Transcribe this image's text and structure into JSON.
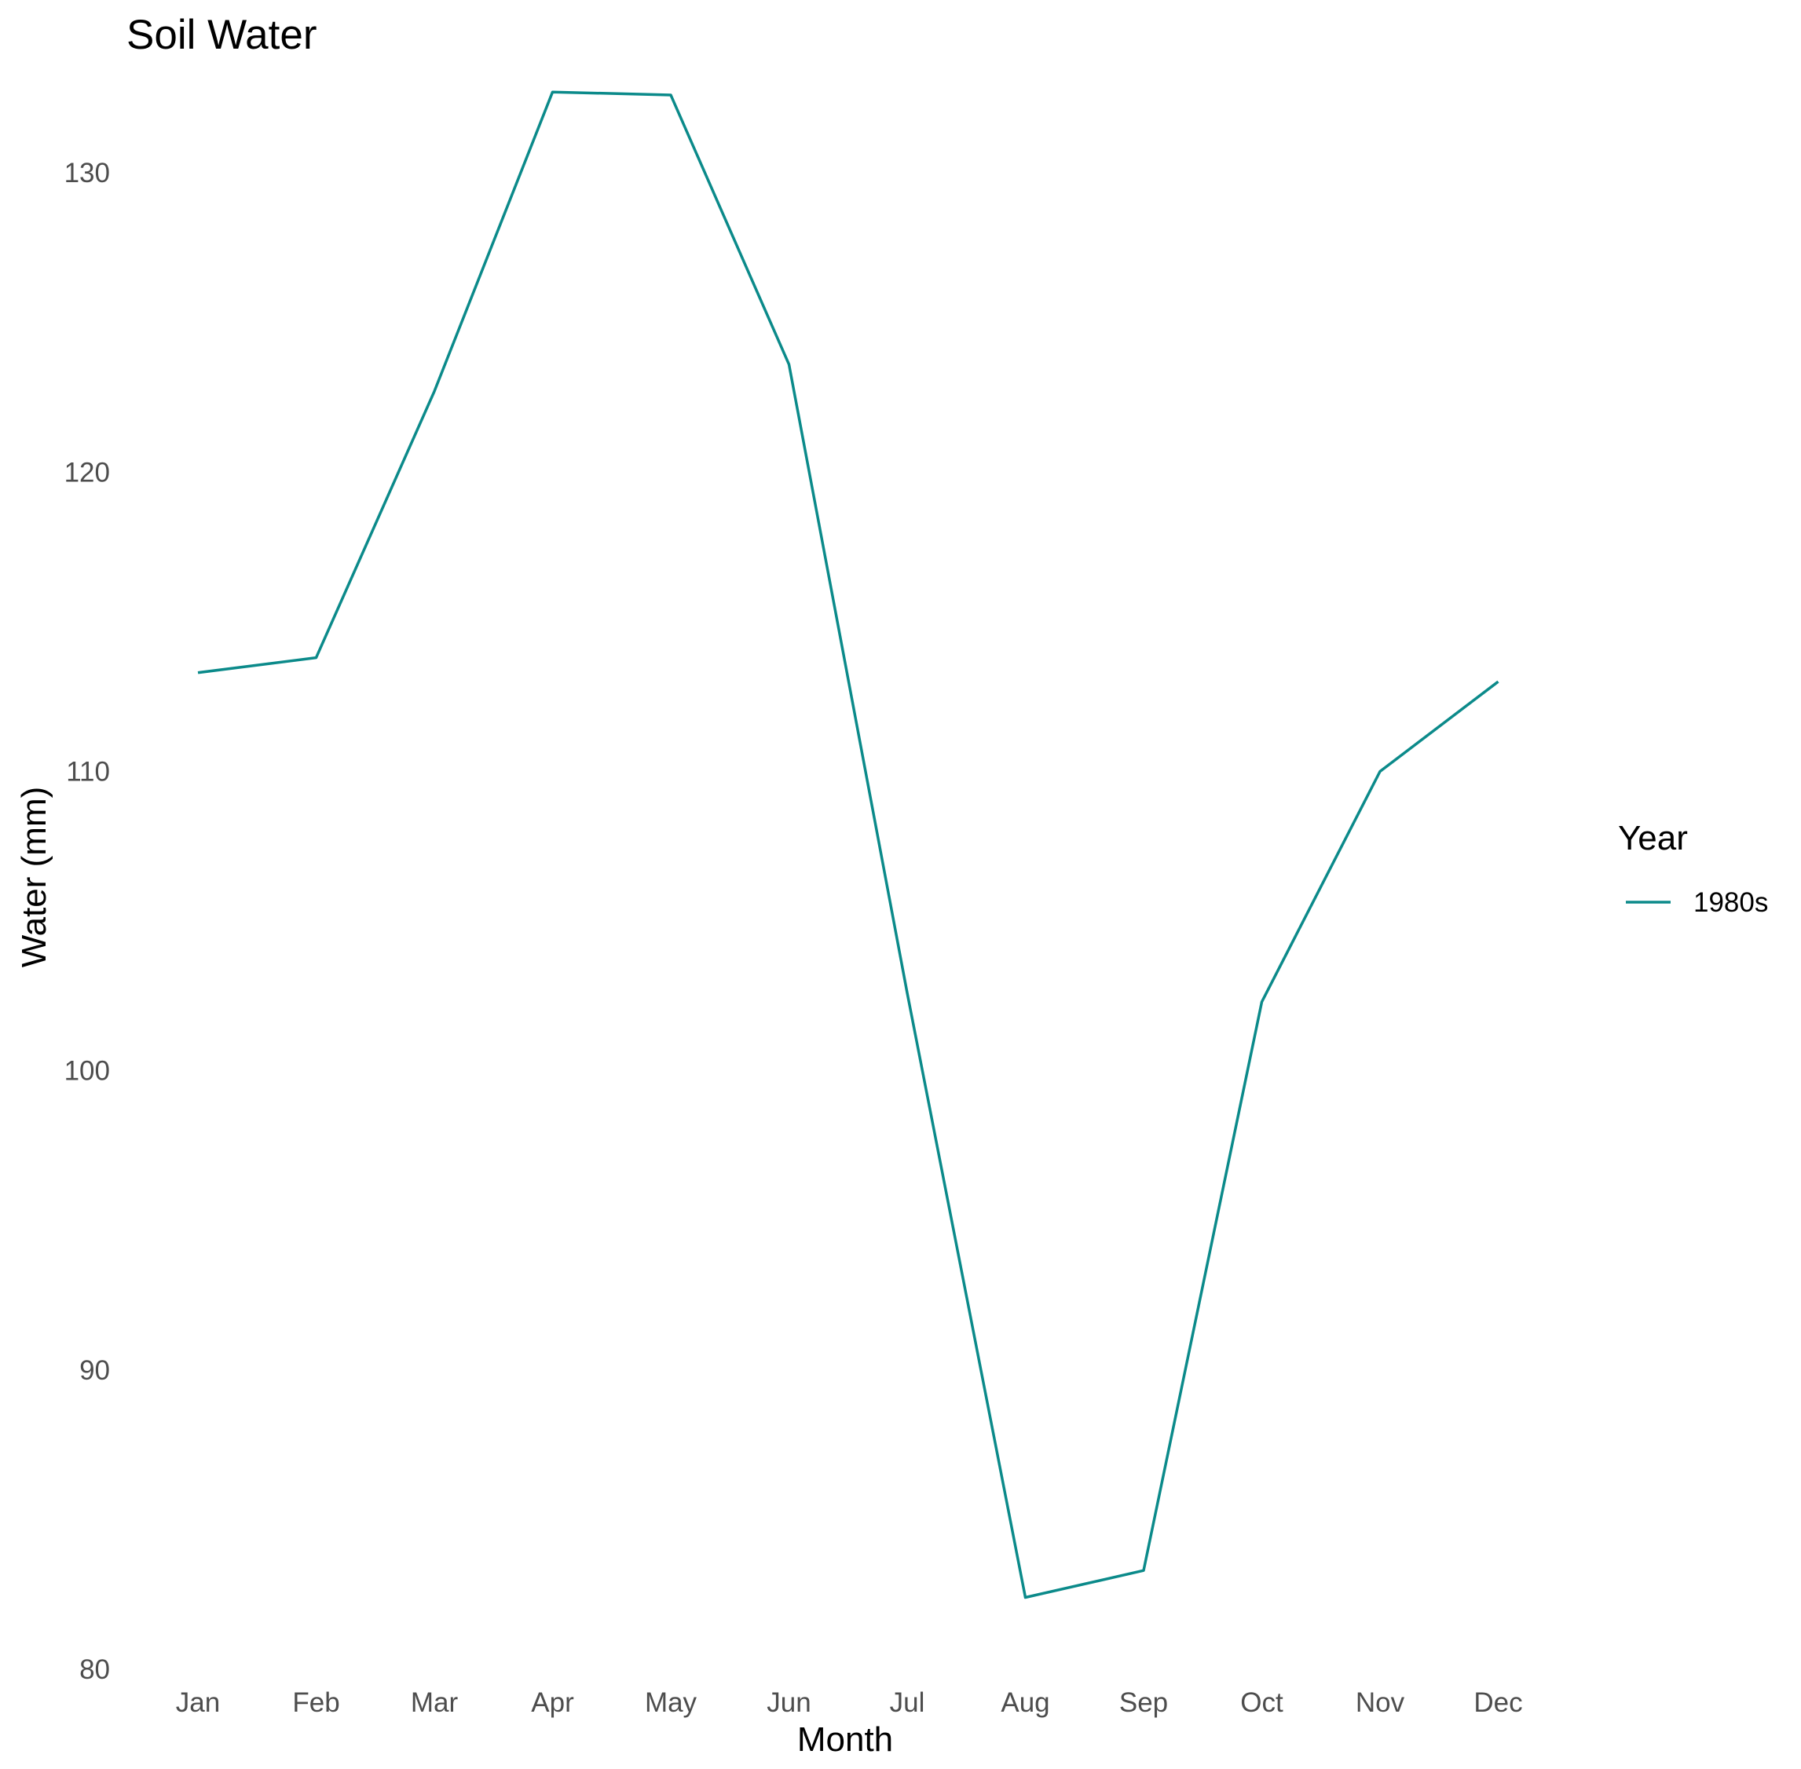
{
  "chart_data": {
    "type": "line",
    "title": "Soil Water",
    "xlabel": "Month",
    "ylabel": "Water (mm)",
    "categories": [
      "Jan",
      "Feb",
      "Mar",
      "Apr",
      "May",
      "Jun",
      "Jul",
      "Aug",
      "Sep",
      "Oct",
      "Nov",
      "Dec"
    ],
    "ylim": [
      80,
      134.2
    ],
    "yticks": [
      80,
      90,
      100,
      110,
      120,
      130
    ],
    "grid": false,
    "legend": {
      "title": "Year",
      "position": "right"
    },
    "series": [
      {
        "name": "1980s",
        "color": "#0b8a8a",
        "values": [
          113.3,
          113.8,
          122.7,
          132.7,
          132.6,
          123.6,
          102.6,
          82.4,
          83.3,
          102.3,
          110.0,
          113.0
        ]
      }
    ]
  }
}
